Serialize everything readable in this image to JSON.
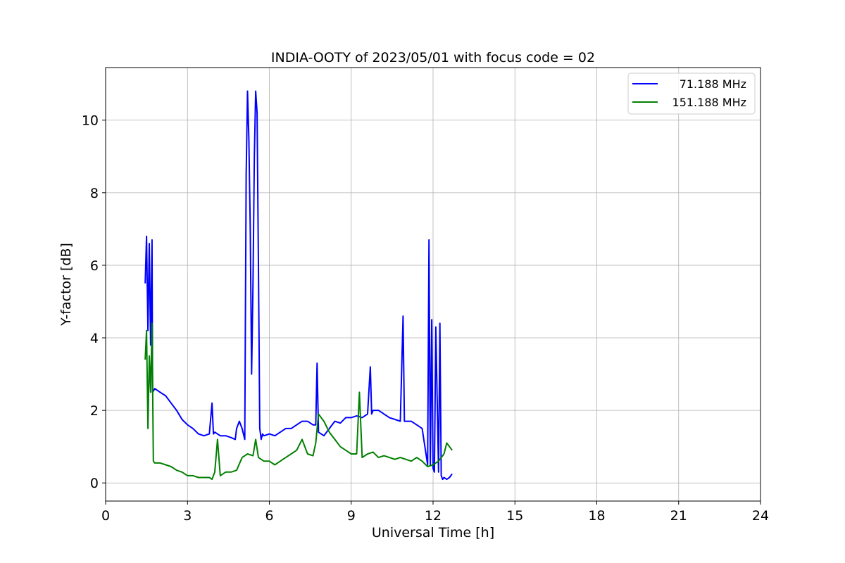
{
  "chart_data": {
    "type": "line",
    "title": "INDIA-OOTY of 2023/05/01 with focus code = 02",
    "xlabel": "Universal Time [h]",
    "ylabel": "Y-factor [dB]",
    "xlim": [
      0,
      24
    ],
    "ylim": [
      -0.5,
      11.45
    ],
    "xticks": [
      0,
      3,
      6,
      9,
      12,
      15,
      18,
      21,
      24
    ],
    "yticks": [
      0,
      2,
      4,
      6,
      8,
      10
    ],
    "grid": true,
    "legend_position": "top-right",
    "series": [
      {
        "name": "71.188 MHz",
        "color": "#0000ff",
        "x": [
          1.45,
          1.5,
          1.55,
          1.6,
          1.65,
          1.7,
          1.72,
          1.8,
          2.0,
          2.2,
          2.4,
          2.6,
          2.8,
          3.0,
          3.2,
          3.4,
          3.6,
          3.8,
          3.9,
          3.95,
          4.0,
          4.2,
          4.4,
          4.6,
          4.75,
          4.8,
          4.9,
          5.0,
          5.1,
          5.15,
          5.2,
          5.25,
          5.3,
          5.35,
          5.4,
          5.45,
          5.5,
          5.55,
          5.6,
          5.65,
          5.7,
          5.75,
          5.8,
          6.0,
          6.2,
          6.4,
          6.6,
          6.8,
          7.0,
          7.2,
          7.4,
          7.6,
          7.7,
          7.75,
          7.8,
          8.0,
          8.2,
          8.4,
          8.6,
          8.8,
          9.0,
          9.2,
          9.4,
          9.6,
          9.7,
          9.75,
          9.8,
          10.0,
          10.2,
          10.4,
          10.6,
          10.8,
          10.9,
          10.95,
          11.0,
          11.2,
          11.4,
          11.6,
          11.8,
          11.85,
          11.9,
          11.95,
          12.0,
          12.05,
          12.1,
          12.2,
          12.25,
          12.3,
          12.35,
          12.4,
          12.5,
          12.6,
          12.7
        ],
        "values": [
          5.5,
          6.8,
          4.2,
          6.6,
          3.8,
          6.7,
          2.5,
          2.6,
          2.5,
          2.4,
          2.2,
          2.0,
          1.75,
          1.6,
          1.5,
          1.35,
          1.3,
          1.35,
          2.2,
          1.35,
          1.4,
          1.3,
          1.3,
          1.25,
          1.2,
          1.5,
          1.7,
          1.5,
          1.2,
          8.5,
          10.8,
          9.5,
          7.0,
          3.0,
          5.5,
          9.0,
          10.8,
          10.2,
          6.0,
          1.5,
          1.2,
          1.35,
          1.3,
          1.35,
          1.3,
          1.4,
          1.5,
          1.5,
          1.6,
          1.7,
          1.7,
          1.6,
          1.6,
          3.3,
          1.4,
          1.3,
          1.5,
          1.7,
          1.65,
          1.8,
          1.8,
          1.85,
          1.8,
          1.9,
          3.2,
          1.9,
          2.0,
          2.0,
          1.9,
          1.8,
          1.75,
          1.7,
          4.6,
          1.7,
          1.7,
          1.7,
          1.6,
          1.5,
          0.5,
          6.7,
          0.5,
          4.5,
          0.4,
          0.3,
          4.3,
          0.3,
          4.4,
          0.2,
          0.1,
          0.15,
          0.1,
          0.15,
          0.25
        ]
      },
      {
        "name": "151.188 MHz",
        "color": "#008000",
        "x": [
          1.45,
          1.5,
          1.55,
          1.6,
          1.65,
          1.7,
          1.75,
          1.8,
          2.0,
          2.2,
          2.4,
          2.6,
          2.8,
          3.0,
          3.2,
          3.4,
          3.6,
          3.8,
          3.9,
          4.0,
          4.1,
          4.2,
          4.4,
          4.6,
          4.8,
          5.0,
          5.2,
          5.4,
          5.5,
          5.6,
          5.8,
          6.0,
          6.2,
          6.4,
          6.6,
          6.8,
          7.0,
          7.2,
          7.4,
          7.6,
          7.7,
          7.8,
          8.0,
          8.2,
          8.4,
          8.6,
          8.8,
          9.0,
          9.2,
          9.3,
          9.4,
          9.6,
          9.8,
          10.0,
          10.2,
          10.4,
          10.6,
          10.8,
          11.0,
          11.2,
          11.4,
          11.6,
          11.8,
          12.0,
          12.2,
          12.4,
          12.5,
          12.6,
          12.7
        ],
        "values": [
          3.4,
          4.2,
          1.5,
          3.5,
          2.5,
          4.4,
          0.6,
          0.55,
          0.55,
          0.5,
          0.45,
          0.35,
          0.3,
          0.2,
          0.2,
          0.15,
          0.15,
          0.15,
          0.1,
          0.3,
          1.2,
          0.2,
          0.3,
          0.3,
          0.35,
          0.7,
          0.8,
          0.75,
          1.2,
          0.7,
          0.6,
          0.6,
          0.5,
          0.6,
          0.7,
          0.8,
          0.9,
          1.2,
          0.8,
          0.75,
          1.1,
          1.9,
          1.7,
          1.4,
          1.2,
          1.0,
          0.9,
          0.8,
          0.8,
          2.5,
          0.7,
          0.8,
          0.85,
          0.7,
          0.75,
          0.7,
          0.65,
          0.7,
          0.65,
          0.6,
          0.7,
          0.6,
          0.45,
          0.5,
          0.6,
          0.8,
          1.1,
          1.0,
          0.9
        ]
      }
    ]
  }
}
